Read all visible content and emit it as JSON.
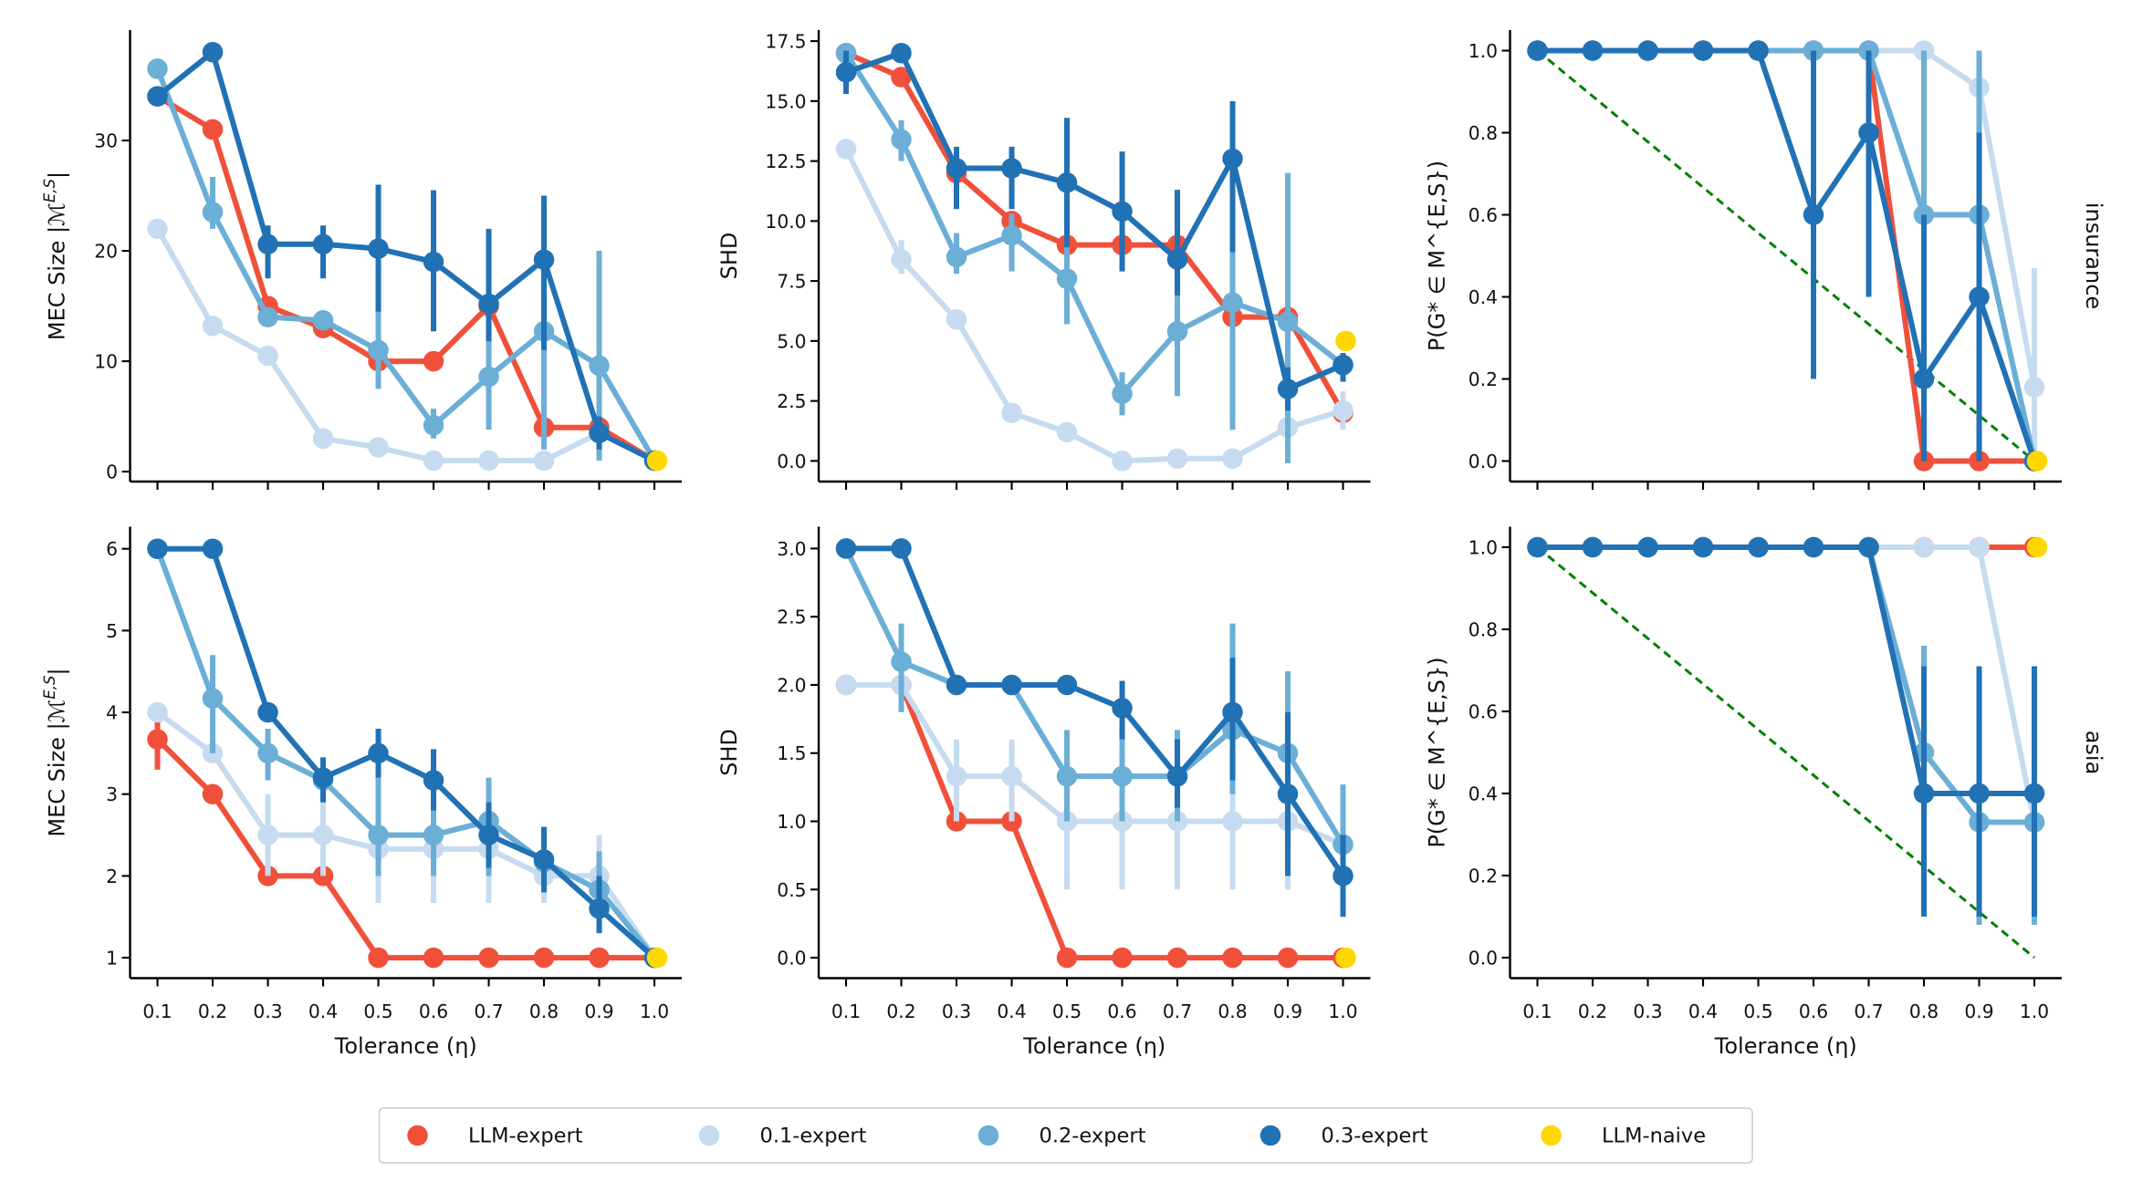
{
  "legend": [
    {
      "name": "LLM-expert",
      "color": "#f0503a"
    },
    {
      "name": "0.1-expert",
      "color": "#c6dbef"
    },
    {
      "name": "0.2-expert",
      "color": "#6baed6"
    },
    {
      "name": "0.3-expert",
      "color": "#2171b5"
    },
    {
      "name": "LLM-naive",
      "color": "#ffd700"
    }
  ],
  "reference_line_color": "#008000",
  "chart_data": [
    {
      "type": "line",
      "row_label": "",
      "ylabel": "MEC Size |M^{E,S}|",
      "xlabel": "",
      "x": [
        "0.1",
        "0.2",
        "0.3",
        "0.4",
        "0.5",
        "0.6",
        "0.7",
        "0.8",
        "0.9",
        "1.0"
      ],
      "ylim": [
        -0.9,
        40
      ],
      "yticks": [
        "0",
        "10",
        "20",
        "30"
      ],
      "grid": false,
      "reference_line": false,
      "series": [
        {
          "name": "LLM-expert",
          "values": [
            34,
            31,
            15,
            13,
            10,
            10,
            15,
            4,
            4,
            1
          ]
        },
        {
          "name": "0.1-expert",
          "values": [
            22,
            13.2,
            10.5,
            3,
            2.2,
            1,
            1,
            1,
            3.5,
            1
          ]
        },
        {
          "name": "0.2-expert",
          "values": [
            36.5,
            23.5,
            14,
            13.7,
            11,
            4.2,
            8.6,
            12.7,
            9.6,
            1
          ],
          "errors": [
            null,
            [
              22,
              26.7
            ],
            null,
            null,
            [
              7.5,
              15.5
            ],
            [
              3,
              5.7
            ],
            [
              3.8,
              14.5
            ],
            [
              2,
              23.5
            ],
            [
              1,
              20
            ],
            null
          ]
        },
        {
          "name": "0.3-expert",
          "values": [
            34,
            38,
            20.6,
            20.6,
            20.2,
            19,
            15.2,
            19.2,
            3.5,
            1
          ],
          "errors": [
            null,
            null,
            [
              17.5,
              22.3
            ],
            [
              17.5,
              22.3
            ],
            [
              14.5,
              26
            ],
            [
              12.7,
              25.5
            ],
            [
              11.8,
              22
            ],
            [
              11,
              25
            ],
            [
              2,
              5
            ],
            null
          ]
        },
        {
          "name": "LLM-naive",
          "values": [
            null,
            null,
            null,
            null,
            null,
            null,
            null,
            null,
            null,
            1
          ]
        }
      ]
    },
    {
      "type": "line",
      "row_label": "",
      "ylabel": "SHD",
      "xlabel": "",
      "x": [
        "0.1",
        "0.2",
        "0.3",
        "0.4",
        "0.5",
        "0.6",
        "0.7",
        "0.8",
        "0.9",
        "1.0"
      ],
      "ylim": [
        -0.86,
        17.96
      ],
      "yticks": [
        "0.0",
        "2.5",
        "5.0",
        "7.5",
        "10.0",
        "12.5",
        "15.0",
        "17.5"
      ],
      "grid": false,
      "reference_line": false,
      "series": [
        {
          "name": "LLM-expert",
          "values": [
            17,
            16,
            12,
            10,
            9,
            9,
            9,
            6,
            6,
            2
          ]
        },
        {
          "name": "0.1-expert",
          "values": [
            13,
            8.4,
            5.9,
            2,
            1.2,
            0,
            0.1,
            0.1,
            1.4,
            2.1
          ],
          "errors": [
            null,
            [
              7.8,
              9.2
            ],
            null,
            null,
            null,
            null,
            null,
            null,
            null,
            [
              1.3,
              2.9
            ]
          ]
        },
        {
          "name": "0.2-expert",
          "values": [
            17,
            13.4,
            8.5,
            9.4,
            7.6,
            2.8,
            5.4,
            6.6,
            5.8,
            4
          ],
          "errors": [
            null,
            [
              12.5,
              14.2
            ],
            [
              7.8,
              9.5
            ],
            [
              7.9,
              10.3
            ],
            [
              5.7,
              10.2
            ],
            [
              1.9,
              3.7
            ],
            [
              2.7,
              8.5
            ],
            [
              1.3,
              8.7
            ],
            [
              -0.1,
              12
            ],
            null
          ]
        },
        {
          "name": "0.3-expert",
          "values": [
            16.2,
            17,
            12.2,
            12.2,
            11.6,
            10.4,
            8.4,
            12.6,
            3,
            4
          ],
          "errors": [
            [
              15.3,
              17.1
            ],
            null,
            [
              10.5,
              13.1
            ],
            [
              10.5,
              13.1
            ],
            [
              8.9,
              14.3
            ],
            [
              7.9,
              12.9
            ],
            [
              6.9,
              11.3
            ],
            [
              8.7,
              15
            ],
            [
              2.1,
              3.9
            ],
            [
              3.3,
              4.5
            ]
          ]
        },
        {
          "name": "LLM-naive",
          "values": [
            null,
            null,
            null,
            null,
            null,
            null,
            null,
            null,
            null,
            5
          ]
        }
      ]
    },
    {
      "type": "line",
      "row_label": "insurance",
      "ylabel": "P(G* ∈ M^{E,S})",
      "xlabel": "",
      "x": [
        "0.1",
        "0.2",
        "0.3",
        "0.4",
        "0.5",
        "0.6",
        "0.7",
        "0.8",
        "0.9",
        "1.0"
      ],
      "ylim": [
        -0.05,
        1.05
      ],
      "yticks": [
        "0.0",
        "0.2",
        "0.4",
        "0.6",
        "0.8",
        "1.0"
      ],
      "grid": false,
      "reference_line": true,
      "series": [
        {
          "name": "LLM-expert",
          "values": [
            1,
            1,
            1,
            1,
            1,
            1,
            1,
            0,
            0,
            0
          ]
        },
        {
          "name": "0.1-expert",
          "values": [
            1,
            1,
            1,
            1,
            1,
            1,
            1,
            1,
            0.91,
            0.18
          ],
          "errors": [
            null,
            null,
            null,
            null,
            null,
            null,
            null,
            null,
            [
              0.73,
              1
            ],
            [
              0,
              0.47
            ]
          ]
        },
        {
          "name": "0.2-expert",
          "values": [
            1,
            1,
            1,
            1,
            1,
            1,
            1,
            0.6,
            0.6,
            0
          ],
          "errors": [
            null,
            null,
            null,
            null,
            null,
            null,
            null,
            [
              0.2,
              1
            ],
            [
              0.2,
              1
            ],
            null
          ]
        },
        {
          "name": "0.3-expert",
          "values": [
            1,
            1,
            1,
            1,
            1,
            0.6,
            0.8,
            0.2,
            0.4,
            0
          ],
          "errors": [
            null,
            null,
            null,
            null,
            null,
            [
              0.2,
              1
            ],
            [
              0.4,
              1
            ],
            [
              0,
              0.6
            ],
            [
              0,
              0.8
            ],
            null
          ]
        },
        {
          "name": "LLM-naive",
          "values": [
            null,
            null,
            null,
            null,
            null,
            null,
            null,
            null,
            null,
            0
          ]
        }
      ]
    },
    {
      "type": "line",
      "row_label": "",
      "ylabel": "MEC Size |M^{E,S}|",
      "xlabel": "Tolerance (η)",
      "x": [
        "0.1",
        "0.2",
        "0.3",
        "0.4",
        "0.5",
        "0.6",
        "0.7",
        "0.8",
        "0.9",
        "1.0"
      ],
      "ylim": [
        0.75,
        6.27
      ],
      "yticks": [
        "1",
        "2",
        "3",
        "4",
        "5",
        "6"
      ],
      "grid": false,
      "reference_line": false,
      "series": [
        {
          "name": "LLM-expert",
          "values": [
            3.67,
            3,
            2,
            2,
            1,
            1,
            1,
            1,
            1,
            1
          ],
          "errors": [
            [
              3.3,
              4
            ],
            null,
            null,
            null,
            null,
            null,
            null,
            null,
            null,
            null
          ]
        },
        {
          "name": "0.1-expert",
          "values": [
            4,
            3.5,
            2.5,
            2.5,
            2.33,
            2.33,
            2.33,
            2,
            2,
            1
          ],
          "errors": [
            null,
            null,
            [
              2,
              3
            ],
            [
              2,
              3
            ],
            [
              1.67,
              3
            ],
            [
              1.67,
              3
            ],
            [
              1.67,
              3
            ],
            [
              1.67,
              2.33
            ],
            [
              1.67,
              2.5
            ],
            null
          ]
        },
        {
          "name": "0.2-expert",
          "values": [
            6,
            4.17,
            3.5,
            3.17,
            2.5,
            2.5,
            2.67,
            2.17,
            1.83,
            1
          ],
          "errors": [
            null,
            [
              3.5,
              4.7
            ],
            [
              3.17,
              3.8
            ],
            null,
            [
              2,
              3.2
            ],
            [
              2,
              3.1
            ],
            [
              2,
              3.2
            ],
            [
              1.8,
              2.6
            ],
            [
              1.5,
              2.3
            ],
            null
          ]
        },
        {
          "name": "0.3-expert",
          "values": [
            6,
            6,
            4,
            3.2,
            3.5,
            3.17,
            2.5,
            2.2,
            1.6,
            1
          ],
          "errors": [
            null,
            null,
            null,
            [
              2.9,
              3.45
            ],
            [
              3.2,
              3.8
            ],
            [
              2.8,
              3.55
            ],
            [
              2.1,
              2.9
            ],
            [
              1.8,
              2.6
            ],
            [
              1.3,
              2
            ],
            null
          ]
        },
        {
          "name": "LLM-naive",
          "values": [
            null,
            null,
            null,
            null,
            null,
            null,
            null,
            null,
            null,
            1
          ]
        }
      ]
    },
    {
      "type": "line",
      "row_label": "",
      "ylabel": "SHD",
      "xlabel": "Tolerance (η)",
      "x": [
        "0.1",
        "0.2",
        "0.3",
        "0.4",
        "0.5",
        "0.6",
        "0.7",
        "0.8",
        "0.9",
        "1.0"
      ],
      "ylim": [
        -0.15,
        3.16
      ],
      "yticks": [
        "0.0",
        "0.5",
        "1.0",
        "1.5",
        "2.0",
        "2.5",
        "3.0"
      ],
      "grid": false,
      "reference_line": false,
      "series": [
        {
          "name": "LLM-expert",
          "values": [
            2,
            2,
            1,
            1,
            0,
            0,
            0,
            0,
            0,
            0
          ]
        },
        {
          "name": "0.1-expert",
          "values": [
            2,
            2,
            1.33,
            1.33,
            1,
            1,
            1,
            1,
            1,
            0.83
          ],
          "errors": [
            null,
            null,
            [
              1,
              1.6
            ],
            [
              1,
              1.6
            ],
            [
              0.5,
              1.5
            ],
            [
              0.5,
              1.5
            ],
            [
              0.5,
              1.5
            ],
            [
              0.5,
              1.5
            ],
            [
              0.5,
              1.5
            ],
            null
          ]
        },
        {
          "name": "0.2-expert",
          "values": [
            3,
            2.17,
            2,
            2,
            1.33,
            1.33,
            1.33,
            1.67,
            1.5,
            0.83
          ],
          "errors": [
            null,
            [
              1.8,
              2.45
            ],
            null,
            null,
            [
              1,
              1.67
            ],
            [
              1,
              1.67
            ],
            [
              1,
              1.67
            ],
            [
              1.2,
              2.45
            ],
            [
              0.8,
              2.1
            ],
            [
              0.4,
              1.27
            ]
          ]
        },
        {
          "name": "0.3-expert",
          "values": [
            3,
            3,
            2,
            2,
            2,
            1.83,
            1.33,
            1.8,
            1.2,
            0.6
          ],
          "errors": [
            null,
            null,
            null,
            null,
            null,
            [
              1.6,
              2.03
            ],
            [
              1.1,
              1.6
            ],
            [
              1.3,
              2.2
            ],
            [
              0.6,
              1.8
            ],
            [
              0.3,
              0.9
            ]
          ]
        },
        {
          "name": "LLM-naive",
          "values": [
            null,
            null,
            null,
            null,
            null,
            null,
            null,
            null,
            null,
            0
          ]
        }
      ]
    },
    {
      "type": "line",
      "row_label": "asia",
      "ylabel": "P(G* ∈ M^{E,S})",
      "xlabel": "Tolerance (η)",
      "x": [
        "0.1",
        "0.2",
        "0.3",
        "0.4",
        "0.5",
        "0.6",
        "0.7",
        "0.8",
        "0.9",
        "1.0"
      ],
      "ylim": [
        -0.05,
        1.05
      ],
      "yticks": [
        "0.0",
        "0.2",
        "0.4",
        "0.6",
        "0.8",
        "1.0"
      ],
      "grid": false,
      "reference_line": true,
      "series": [
        {
          "name": "LLM-expert",
          "values": [
            1,
            1,
            1,
            1,
            1,
            1,
            1,
            1,
            1,
            1
          ]
        },
        {
          "name": "0.1-expert",
          "values": [
            1,
            1,
            1,
            1,
            1,
            1,
            1,
            1,
            1,
            0.33
          ]
        },
        {
          "name": "0.2-expert",
          "values": [
            1,
            1,
            1,
            1,
            1,
            1,
            1,
            0.5,
            0.33,
            0.33
          ],
          "errors": [
            null,
            null,
            null,
            null,
            null,
            null,
            null,
            [
              0.2,
              0.76
            ],
            [
              0.08,
              0.59
            ],
            [
              0.08,
              0.59
            ]
          ]
        },
        {
          "name": "0.3-expert",
          "values": [
            1,
            1,
            1,
            1,
            1,
            1,
            1,
            0.4,
            0.4,
            0.4
          ],
          "errors": [
            null,
            null,
            null,
            null,
            null,
            null,
            null,
            [
              0.1,
              0.71
            ],
            [
              0.1,
              0.71
            ],
            [
              0.1,
              0.71
            ]
          ]
        },
        {
          "name": "LLM-naive",
          "values": [
            null,
            null,
            null,
            null,
            null,
            null,
            null,
            null,
            null,
            1
          ]
        }
      ]
    }
  ]
}
